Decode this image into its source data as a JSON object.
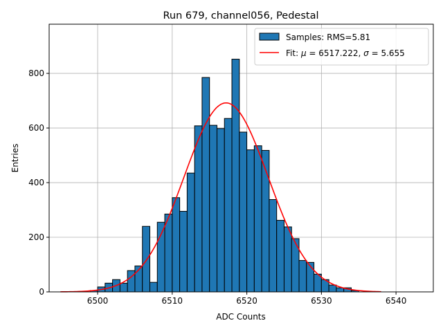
{
  "chart_data": {
    "type": "bar",
    "title": "Run 679, channel056, Pedestal",
    "xlabel": "ADC Counts",
    "ylabel": "Entries",
    "xlim": [
      6493.5,
      6545.0
    ],
    "ylim": [
      0,
      980
    ],
    "xticks": [
      6500,
      6510,
      6520,
      6530,
      6540
    ],
    "yticks": [
      0,
      200,
      400,
      600,
      800
    ],
    "grid": true,
    "legend_position": "top-right",
    "histogram": {
      "name": "Samples: RMS=5.81",
      "color": "#1f77b4",
      "bin_width": 1,
      "bin_left_edges": [
        6499,
        6500,
        6501,
        6502,
        6503,
        6504,
        6505,
        6506,
        6507,
        6508,
        6509,
        6510,
        6511,
        6512,
        6513,
        6514,
        6515,
        6516,
        6517,
        6518,
        6519,
        6520,
        6521,
        6522,
        6523,
        6524,
        6525,
        6526,
        6527,
        6528,
        6529,
        6530,
        6531,
        6532,
        6533,
        6534
      ],
      "values": [
        5,
        18,
        32,
        45,
        32,
        78,
        95,
        240,
        35,
        255,
        285,
        345,
        295,
        435,
        608,
        785,
        610,
        598,
        635,
        852,
        585,
        520,
        535,
        518,
        338,
        262,
        238,
        195,
        115,
        108,
        65,
        45,
        25,
        15,
        15,
        5
      ]
    },
    "fit": {
      "name": "Fit: μ = 6517.222, σ = 5.655",
      "color": "#ff0000",
      "mu": 6517.222,
      "sigma": 5.655,
      "amplitude": 692,
      "x_range": [
        6495,
        6538
      ]
    },
    "legend": {
      "samples_text": "Samples: RMS=5.81",
      "fit_prefix": "Fit: ",
      "mu_symbol": "μ",
      "mu_value": " = 6517.222, ",
      "sigma_symbol": "σ",
      "sigma_value": " = 5.655"
    }
  }
}
